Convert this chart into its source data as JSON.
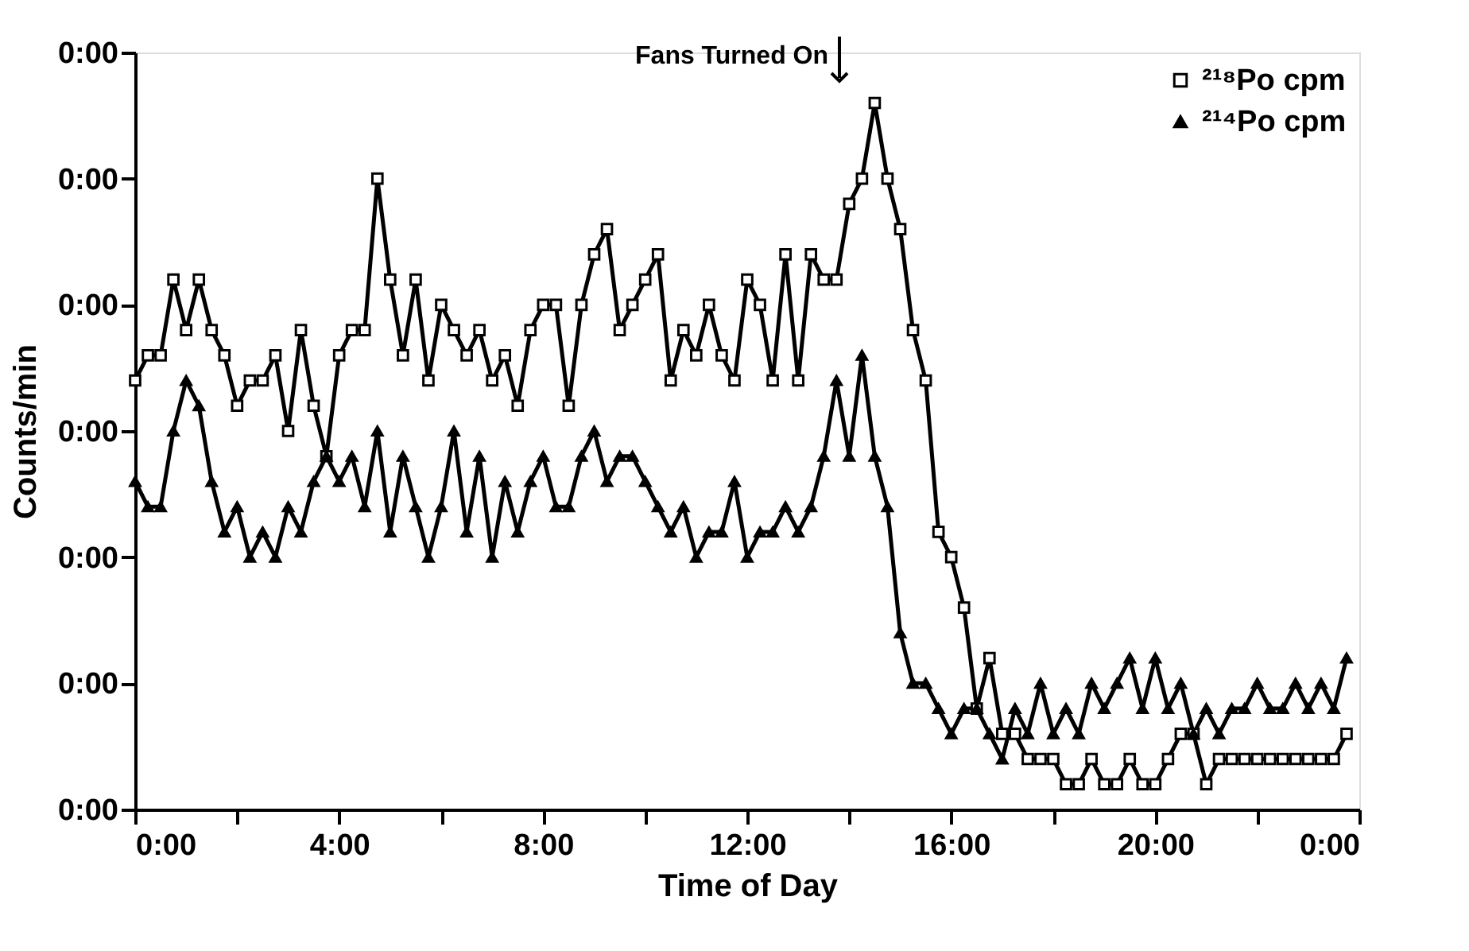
{
  "chart_data": {
    "type": "line",
    "xlabel": "Time of Day",
    "ylabel": "Counts/min",
    "xlim": [
      0,
      24
    ],
    "xticks": [
      {
        "value": 0,
        "label": "0:00"
      },
      {
        "value": 2,
        "label": null
      },
      {
        "value": 4,
        "label": "4:00"
      },
      {
        "value": 6,
        "label": null
      },
      {
        "value": 8,
        "label": "8:00"
      },
      {
        "value": 10,
        "label": null
      },
      {
        "value": 12,
        "label": "12:00"
      },
      {
        "value": 14,
        "label": null
      },
      {
        "value": 16,
        "label": "16:00"
      },
      {
        "value": 18,
        "label": null
      },
      {
        "value": 20,
        "label": "20:00"
      },
      {
        "value": 22,
        "label": null
      },
      {
        "value": 24,
        "label": "0:00"
      }
    ],
    "ylim": [
      0,
      6
    ],
    "yticks": [
      {
        "value": 0,
        "label": "0:00"
      },
      {
        "value": 1,
        "label": "0:00"
      },
      {
        "value": 2,
        "label": "0:00"
      },
      {
        "value": 3,
        "label": "0:00"
      },
      {
        "value": 4,
        "label": "0:00"
      },
      {
        "value": 5,
        "label": "0:00"
      },
      {
        "value": 6,
        "label": "0:00"
      }
    ],
    "grid": false,
    "legend": "top right",
    "line_style": "solid",
    "annotations": [
      "Fans Turned On"
    ],
    "series": [
      {
        "name": "²¹⁸Po cpm",
        "color": "#000000",
        "marker": "square",
        "x": [
          0,
          0.25,
          0.5,
          0.75,
          1,
          1.25,
          1.5,
          1.75,
          2,
          2.25,
          2.5,
          2.75,
          3,
          3.25,
          3.5,
          3.75,
          4,
          4.25,
          4.5,
          4.75,
          5,
          5.25,
          5.5,
          5.75,
          6,
          6.25,
          6.5,
          6.75,
          7,
          7.25,
          7.5,
          7.75,
          8,
          8.25,
          8.5,
          8.75,
          9,
          9.25,
          9.5,
          9.75,
          10,
          10.25,
          10.5,
          10.75,
          11,
          11.25,
          11.5,
          11.75,
          12,
          12.25,
          12.5,
          12.75,
          13,
          13.25,
          13.5,
          13.75,
          14,
          14.25,
          14.5,
          14.75,
          15,
          15.25,
          15.5,
          15.75,
          16,
          16.25,
          16.5,
          16.75,
          17,
          17.25,
          17.5,
          17.75,
          18,
          18.25,
          18.5,
          18.75,
          19,
          19.25,
          19.5,
          19.75,
          20,
          20.25,
          20.5,
          20.75,
          21,
          21.25,
          21.5,
          21.75,
          22,
          22.25,
          22.5,
          22.75,
          23,
          23.25,
          23.5,
          23.75
        ],
        "values": [
          3.4,
          3.6,
          3.6,
          4.2,
          3.8,
          4.2,
          3.8,
          3.6,
          3.2,
          3.4,
          3.4,
          3.6,
          3.0,
          3.8,
          3.2,
          2.8,
          3.6,
          3.8,
          3.8,
          5.0,
          4.2,
          3.6,
          4.2,
          3.4,
          4.0,
          3.8,
          3.6,
          3.8,
          3.4,
          3.6,
          3.2,
          3.8,
          4.0,
          4.0,
          3.2,
          4.0,
          4.4,
          4.6,
          3.8,
          4.0,
          4.2,
          4.4,
          3.4,
          3.8,
          3.6,
          4.0,
          3.6,
          3.4,
          4.2,
          4.0,
          3.4,
          4.4,
          3.4,
          4.4,
          4.2,
          4.2,
          4.8,
          5.0,
          5.6,
          5.0,
          4.6,
          3.8,
          3.4,
          2.2,
          2.0,
          1.6,
          0.8,
          1.2,
          0.6,
          0.6,
          0.4,
          0.4,
          0.4,
          0.2,
          0.2,
          0.4,
          0.2,
          0.2,
          0.4,
          0.2,
          0.2,
          0.4,
          0.6,
          0.6,
          0.2,
          0.4,
          0.4,
          0.4,
          0.4,
          0.4,
          0.4,
          0.4,
          0.4,
          0.4,
          0.4,
          0.6
        ]
      },
      {
        "name": "²¹⁴Po cpm",
        "color": "#000000",
        "marker": "triangle",
        "x": [
          0,
          0.25,
          0.5,
          0.75,
          1,
          1.25,
          1.5,
          1.75,
          2,
          2.25,
          2.5,
          2.75,
          3,
          3.25,
          3.5,
          3.75,
          4,
          4.25,
          4.5,
          4.75,
          5,
          5.25,
          5.5,
          5.75,
          6,
          6.25,
          6.5,
          6.75,
          7,
          7.25,
          7.5,
          7.75,
          8,
          8.25,
          8.5,
          8.75,
          9,
          9.25,
          9.5,
          9.75,
          10,
          10.25,
          10.5,
          10.75,
          11,
          11.25,
          11.5,
          11.75,
          12,
          12.25,
          12.5,
          12.75,
          13,
          13.25,
          13.5,
          13.75,
          14,
          14.25,
          14.5,
          14.75,
          15,
          15.25,
          15.5,
          15.75,
          16,
          16.25,
          16.5,
          16.75,
          17,
          17.25,
          17.5,
          17.75,
          18,
          18.25,
          18.5,
          18.75,
          19,
          19.25,
          19.5,
          19.75,
          20,
          20.25,
          20.5,
          20.75,
          21,
          21.25,
          21.5,
          21.75,
          22,
          22.25,
          22.5,
          22.75,
          23,
          23.25,
          23.5,
          23.75
        ],
        "values": [
          2.6,
          2.4,
          2.4,
          3.0,
          3.4,
          3.2,
          2.6,
          2.2,
          2.4,
          2.0,
          2.2,
          2.0,
          2.4,
          2.2,
          2.6,
          2.8,
          2.6,
          2.8,
          2.4,
          3.0,
          2.2,
          2.8,
          2.4,
          2.0,
          2.4,
          3.0,
          2.2,
          2.8,
          2.0,
          2.6,
          2.2,
          2.6,
          2.8,
          2.4,
          2.4,
          2.8,
          3.0,
          2.6,
          2.8,
          2.8,
          2.6,
          2.4,
          2.2,
          2.4,
          2.0,
          2.2,
          2.2,
          2.6,
          2.0,
          2.2,
          2.2,
          2.4,
          2.2,
          2.4,
          2.8,
          3.4,
          2.8,
          3.6,
          2.8,
          2.4,
          1.4,
          1.0,
          1.0,
          0.8,
          0.6,
          0.8,
          0.8,
          0.6,
          0.4,
          0.8,
          0.6,
          1.0,
          0.6,
          0.8,
          0.6,
          1.0,
          0.8,
          1.0,
          1.2,
          0.8,
          1.2,
          0.8,
          1.0,
          0.6,
          0.8,
          0.6,
          0.8,
          0.8,
          1.0,
          0.8,
          0.8,
          1.0,
          0.8,
          1.0,
          0.8,
          1.2
        ]
      }
    ]
  }
}
